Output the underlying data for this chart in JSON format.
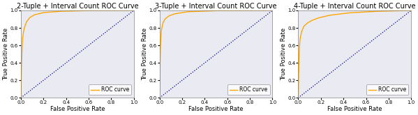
{
  "panels": [
    {
      "title": "2-Tuple + Interval Count ROC Curve",
      "roc_points": [
        [
          0,
          0
        ],
        [
          0.005,
          0.35
        ],
        [
          0.01,
          0.55
        ],
        [
          0.015,
          0.68
        ],
        [
          0.02,
          0.73
        ],
        [
          0.03,
          0.8
        ],
        [
          0.05,
          0.87
        ],
        [
          0.08,
          0.92
        ],
        [
          0.12,
          0.95
        ],
        [
          0.2,
          0.975
        ],
        [
          0.35,
          0.99
        ],
        [
          0.6,
          0.998
        ],
        [
          1.0,
          1.0
        ]
      ],
      "curve_color": "#FFA500",
      "diag_color": "#00008B",
      "xlabel": "False Positive Rate",
      "ylabel": "True Positive Rate",
      "legend_label": "ROC curve"
    },
    {
      "title": "3-Tuple + Interval Count ROC Curve",
      "roc_points": [
        [
          0,
          0
        ],
        [
          0.003,
          0.3
        ],
        [
          0.006,
          0.52
        ],
        [
          0.01,
          0.67
        ],
        [
          0.015,
          0.76
        ],
        [
          0.02,
          0.8
        ],
        [
          0.03,
          0.86
        ],
        [
          0.05,
          0.905
        ],
        [
          0.08,
          0.935
        ],
        [
          0.13,
          0.96
        ],
        [
          0.25,
          0.985
        ],
        [
          0.5,
          0.997
        ],
        [
          1.0,
          1.0
        ]
      ],
      "curve_color": "#FFA500",
      "diag_color": "#00008B",
      "xlabel": "False Positive Rate",
      "ylabel": "True Positive Rate",
      "legend_label": "ROC curve"
    },
    {
      "title": "4-Tuple + Interval Count ROC Curve",
      "roc_points": [
        [
          0,
          0
        ],
        [
          0.003,
          0.25
        ],
        [
          0.006,
          0.44
        ],
        [
          0.01,
          0.58
        ],
        [
          0.015,
          0.66
        ],
        [
          0.02,
          0.7
        ],
        [
          0.03,
          0.76
        ],
        [
          0.05,
          0.82
        ],
        [
          0.08,
          0.855
        ],
        [
          0.12,
          0.885
        ],
        [
          0.18,
          0.915
        ],
        [
          0.28,
          0.945
        ],
        [
          0.45,
          0.972
        ],
        [
          0.7,
          0.99
        ],
        [
          1.0,
          1.0
        ]
      ],
      "curve_color": "#FFA500",
      "diag_color": "#00008B",
      "xlabel": "False Positive Rate",
      "ylabel": "True Positive Rate",
      "legend_label": "ROC curve"
    }
  ],
  "figsize": [
    5.99,
    1.65
  ],
  "dpi": 100,
  "title_fontsize": 7.0,
  "label_fontsize": 6.0,
  "tick_fontsize": 5.0,
  "legend_fontsize": 5.5,
  "bg_color": "#eaeaf2"
}
